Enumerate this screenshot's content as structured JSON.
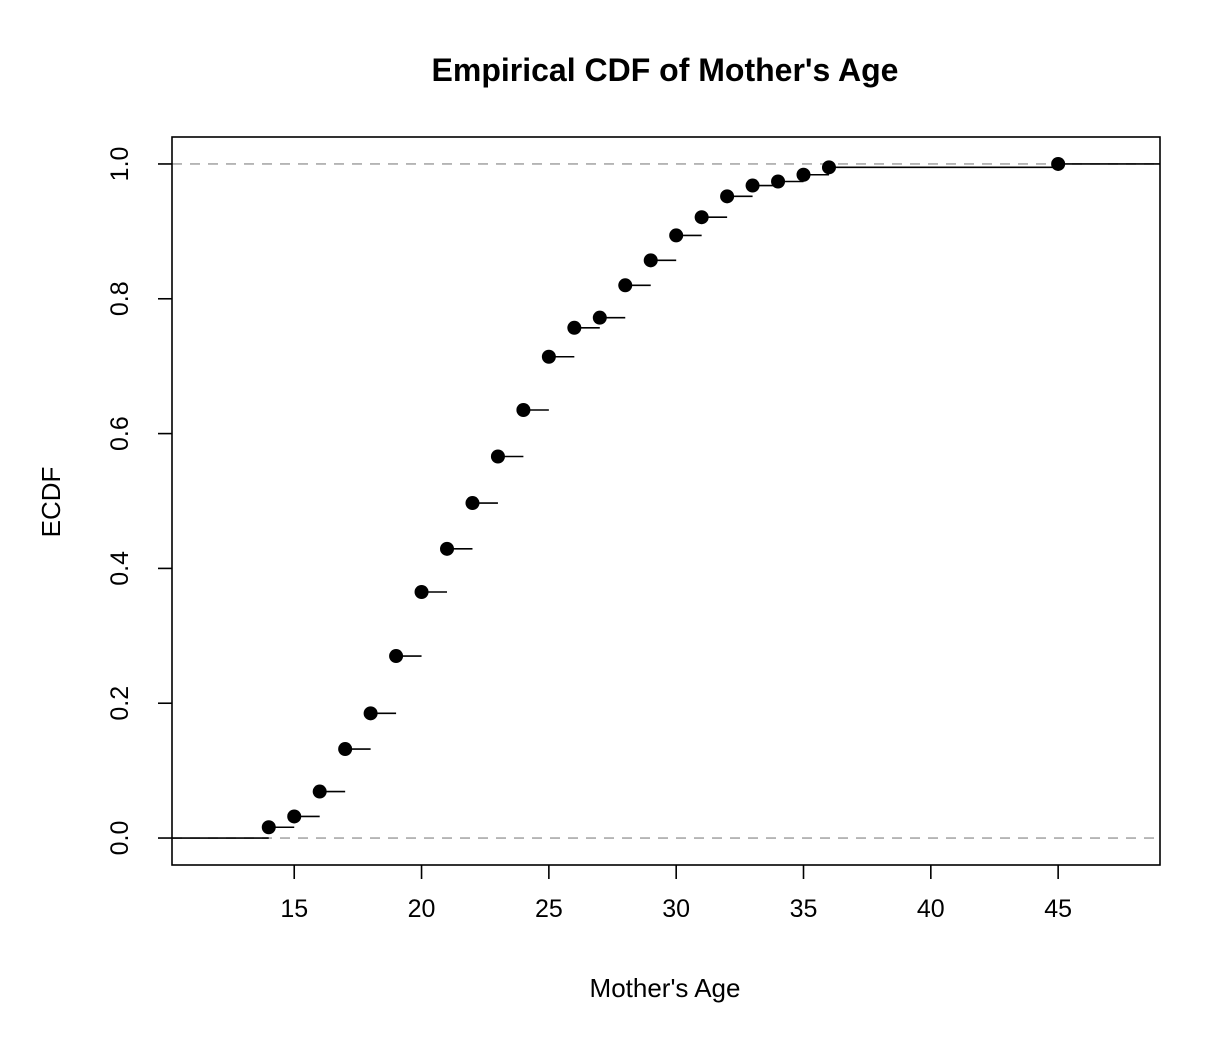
{
  "chart_data": {
    "type": "line",
    "subtype": "ecdf-step",
    "title": "Empirical CDF of Mother's Age",
    "xlabel": "Mother's Age",
    "ylabel": "ECDF",
    "xlim": [
      10.2,
      49.0
    ],
    "ylim": [
      -0.04,
      1.04
    ],
    "x_ticks": [
      15,
      20,
      25,
      30,
      35,
      40,
      45
    ],
    "y_ticks": [
      0.0,
      0.2,
      0.4,
      0.6,
      0.8,
      1.0
    ],
    "x_tick_labels": [
      "15",
      "20",
      "25",
      "30",
      "35",
      "40",
      "45"
    ],
    "y_tick_labels": [
      "0.0",
      "0.2",
      "0.4",
      "0.6",
      "0.8",
      "1.0"
    ],
    "reference_lines_y": [
      0.0,
      1.0
    ],
    "reference_line_color": "#a9a9a9",
    "grid": false,
    "legend": "none",
    "series": [
      {
        "x": [
          14,
          15,
          16,
          17,
          18,
          19,
          20,
          21,
          22,
          23,
          24,
          25,
          26,
          27,
          28,
          29,
          30,
          31,
          32,
          33,
          34,
          35,
          36,
          45
        ],
        "y": [
          0.016,
          0.032,
          0.069,
          0.132,
          0.185,
          0.27,
          0.365,
          0.429,
          0.497,
          0.566,
          0.635,
          0.714,
          0.757,
          0.772,
          0.82,
          0.857,
          0.894,
          0.921,
          0.952,
          0.968,
          0.974,
          0.984,
          0.995,
          1.0
        ]
      }
    ]
  }
}
